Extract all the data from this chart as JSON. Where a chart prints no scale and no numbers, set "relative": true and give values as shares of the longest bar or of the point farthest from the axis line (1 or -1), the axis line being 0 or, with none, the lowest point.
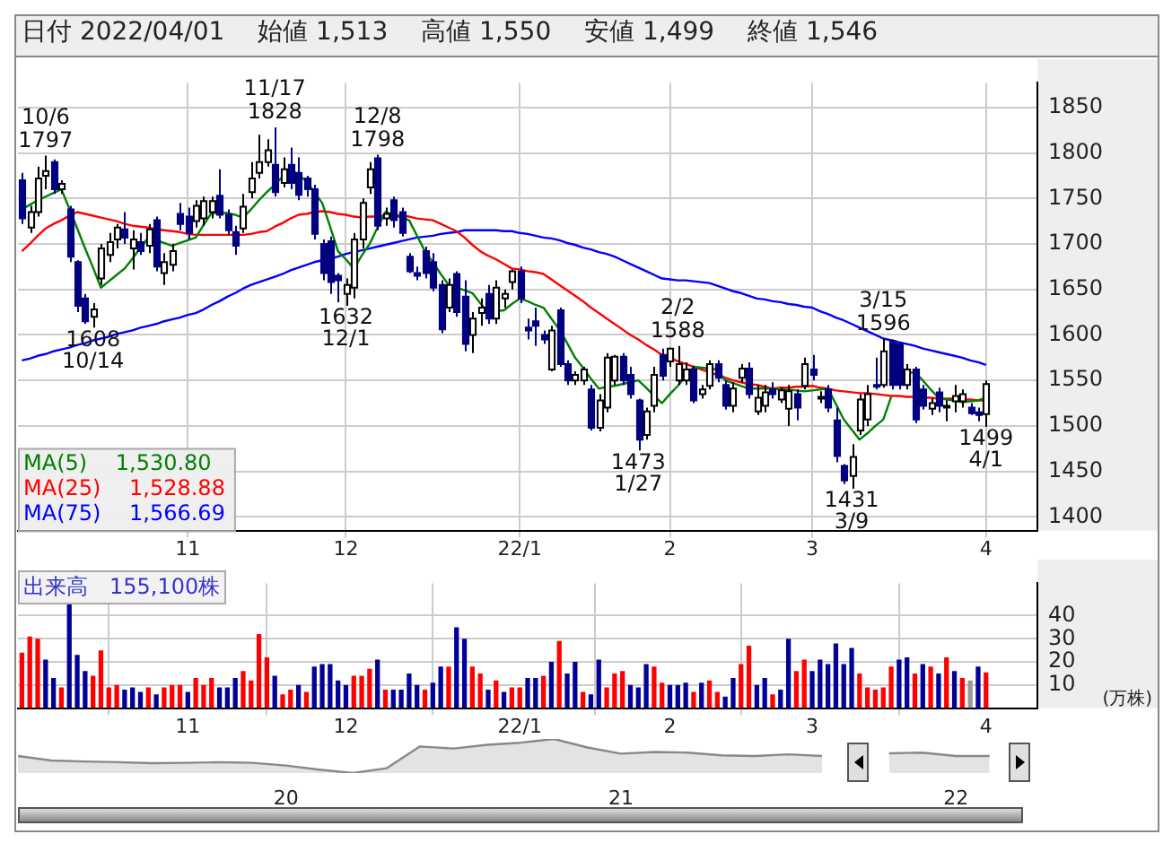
{
  "chart_data": [
    {
      "type": "candlestick",
      "title": "日付 2022/04/01　 始値 1,513　 高値 1,550　 安値 1,499　 終値 1,546",
      "categories": [
        null,
        null,
        null,
        null,
        null,
        null,
        null,
        null,
        null,
        null,
        null,
        null,
        null,
        null,
        null,
        null,
        null,
        null,
        null,
        null,
        null,
        "11",
        null,
        null,
        null,
        null,
        null,
        null,
        null,
        null,
        null,
        null,
        null,
        null,
        null,
        null,
        null,
        null,
        null,
        null,
        null,
        "12",
        null,
        null,
        null,
        null,
        null,
        null,
        null,
        null,
        null,
        null,
        null,
        null,
        null,
        null,
        null,
        null,
        null,
        null,
        null,
        null,
        null,
        "22/1",
        null,
        null,
        null,
        null,
        null,
        null,
        null,
        null,
        null,
        null,
        null,
        null,
        null,
        null,
        null,
        null,
        null,
        null,
        "2",
        null,
        null,
        null,
        null,
        null,
        null,
        null,
        null,
        null,
        null,
        null,
        null,
        null,
        null,
        null,
        null,
        null,
        "3",
        null,
        null,
        null,
        null,
        null,
        null,
        null,
        null,
        null,
        null,
        null,
        null,
        null,
        null,
        null,
        null,
        null,
        null,
        null,
        null,
        null,
        "4"
      ],
      "ohlc": [
        [
          1770,
          1778,
          1722,
          1728
        ],
        [
          1718,
          1742,
          1712,
          1735
        ],
        [
          1735,
          1785,
          1730,
          1772
        ],
        [
          1775,
          1797,
          1760,
          1780
        ],
        [
          1790,
          1793,
          1755,
          1760
        ],
        [
          1760,
          1770,
          1755,
          1766
        ],
        [
          1738,
          1742,
          1680,
          1686
        ],
        [
          1680,
          1682,
          1625,
          1632
        ],
        [
          1640,
          1645,
          1612,
          1615
        ],
        [
          1620,
          1635,
          1608,
          1628
        ],
        [
          1662,
          1700,
          1655,
          1695
        ],
        [
          1688,
          1712,
          1680,
          1702
        ],
        [
          1705,
          1722,
          1695,
          1718
        ],
        [
          1716,
          1735,
          1700,
          1707
        ],
        [
          1695,
          1715,
          1672,
          1705
        ],
        [
          1702,
          1712,
          1688,
          1692
        ],
        [
          1698,
          1722,
          1690,
          1716
        ],
        [
          1726,
          1730,
          1670,
          1675
        ],
        [
          1668,
          1690,
          1655,
          1680
        ],
        [
          1677,
          1700,
          1670,
          1692
        ],
        [
          1733,
          1745,
          1715,
          1722
        ],
        [
          1730,
          1740,
          1705,
          1712
        ],
        [
          1725,
          1748,
          1718,
          1742
        ],
        [
          1728,
          1752,
          1720,
          1747
        ],
        [
          1735,
          1752,
          1728,
          1747
        ],
        [
          1753,
          1782,
          1728,
          1732
        ],
        [
          1732,
          1738,
          1710,
          1715
        ],
        [
          1713,
          1720,
          1688,
          1698
        ],
        [
          1717,
          1755,
          1712,
          1741
        ],
        [
          1757,
          1790,
          1750,
          1772
        ],
        [
          1778,
          1820,
          1772,
          1790
        ],
        [
          1790,
          1815,
          1785,
          1803
        ],
        [
          1787,
          1828,
          1752,
          1757
        ],
        [
          1767,
          1795,
          1762,
          1782
        ],
        [
          1787,
          1806,
          1760,
          1767
        ],
        [
          1778,
          1795,
          1748,
          1754
        ],
        [
          1772,
          1775,
          1752,
          1760
        ],
        [
          1760,
          1765,
          1705,
          1711
        ],
        [
          1700,
          1705,
          1660,
          1668
        ],
        [
          1703,
          1708,
          1645,
          1658
        ],
        [
          1665,
          1668,
          1636,
          1660
        ],
        [
          1645,
          1662,
          1632,
          1655
        ],
        [
          1652,
          1712,
          1640,
          1705
        ],
        [
          1705,
          1750,
          1695,
          1745
        ],
        [
          1762,
          1790,
          1755,
          1782
        ],
        [
          1794,
          1798,
          1715,
          1720
        ],
        [
          1728,
          1740,
          1720,
          1733
        ],
        [
          1748,
          1752,
          1718,
          1726
        ],
        [
          1735,
          1740,
          1708,
          1712
        ],
        [
          1686,
          1690,
          1668,
          1670
        ],
        [
          1668,
          1675,
          1660,
          1665
        ],
        [
          1692,
          1697,
          1662,
          1668
        ],
        [
          1680,
          1690,
          1648,
          1652
        ],
        [
          1655,
          1660,
          1602,
          1606
        ],
        [
          1630,
          1662,
          1625,
          1655
        ],
        [
          1667,
          1670,
          1620,
          1625
        ],
        [
          1642,
          1660,
          1582,
          1590
        ],
        [
          1600,
          1625,
          1580,
          1618
        ],
        [
          1624,
          1640,
          1610,
          1630
        ],
        [
          1645,
          1655,
          1612,
          1618
        ],
        [
          1618,
          1660,
          1612,
          1652
        ],
        [
          1640,
          1650,
          1630,
          1645
        ],
        [
          1658,
          1672,
          1650,
          1670
        ],
        [
          1670,
          1675,
          1635,
          1640
        ],
        [
          1608,
          1618,
          1595,
          1605
        ],
        [
          1615,
          1630,
          1588,
          1610
        ],
        [
          1600,
          1605,
          1590,
          1595
        ],
        [
          1562,
          1610,
          1560,
          1605
        ],
        [
          1627,
          1630,
          1565,
          1568
        ],
        [
          1568,
          1572,
          1545,
          1550
        ],
        [
          1550,
          1560,
          1545,
          1556
        ],
        [
          1550,
          1565,
          1545,
          1562
        ],
        [
          1540,
          1545,
          1495,
          1498
        ],
        [
          1498,
          1535,
          1494,
          1528
        ],
        [
          1520,
          1580,
          1515,
          1575
        ],
        [
          1550,
          1578,
          1545,
          1576
        ],
        [
          1576,
          1580,
          1545,
          1550
        ],
        [
          1556,
          1565,
          1530,
          1535
        ],
        [
          1528,
          1530,
          1473,
          1485
        ],
        [
          1490,
          1520,
          1485,
          1516
        ],
        [
          1522,
          1565,
          1515,
          1556
        ],
        [
          1578,
          1585,
          1550,
          1555
        ],
        [
          1571,
          1586,
          1565,
          1585
        ],
        [
          1550,
          1588,
          1545,
          1568
        ],
        [
          1550,
          1570,
          1545,
          1562
        ],
        [
          1562,
          1566,
          1525,
          1528
        ],
        [
          1535,
          1545,
          1530,
          1540
        ],
        [
          1544,
          1572,
          1540,
          1568
        ],
        [
          1568,
          1572,
          1548,
          1553
        ],
        [
          1545,
          1550,
          1518,
          1522
        ],
        [
          1522,
          1548,
          1515,
          1541
        ],
        [
          1553,
          1568,
          1548,
          1563
        ],
        [
          1563,
          1570,
          1530,
          1535
        ],
        [
          1516,
          1545,
          1512,
          1531
        ],
        [
          1522,
          1545,
          1515,
          1537
        ],
        [
          1540,
          1548,
          1530,
          1535
        ],
        [
          1529,
          1542,
          1525,
          1539
        ],
        [
          1519,
          1545,
          1500,
          1538
        ],
        [
          1535,
          1540,
          1506,
          1520
        ],
        [
          1544,
          1575,
          1540,
          1568
        ],
        [
          1562,
          1578,
          1550,
          1556
        ],
        [
          1530,
          1538,
          1525,
          1532
        ],
        [
          1540,
          1545,
          1515,
          1520
        ],
        [
          1506,
          1520,
          1460,
          1467
        ],
        [
          1456,
          1458,
          1436,
          1440
        ],
        [
          1445,
          1480,
          1431,
          1466
        ],
        [
          1495,
          1535,
          1490,
          1529
        ],
        [
          1507,
          1545,
          1500,
          1535
        ],
        [
          1545,
          1575,
          1540,
          1543
        ],
        [
          1545,
          1596,
          1542,
          1582
        ],
        [
          1593,
          1595,
          1540,
          1545
        ],
        [
          1590,
          1592,
          1540,
          1545
        ],
        [
          1545,
          1568,
          1540,
          1562
        ],
        [
          1562,
          1565,
          1503,
          1507
        ],
        [
          1540,
          1545,
          1518,
          1522
        ],
        [
          1519,
          1530,
          1512,
          1525
        ],
        [
          1537,
          1542,
          1515,
          1522
        ],
        [
          1520,
          1528,
          1505,
          1522
        ],
        [
          1527,
          1545,
          1515,
          1533
        ],
        [
          1527,
          1540,
          1520,
          1535
        ],
        [
          1520,
          1525,
          1512,
          1514
        ],
        [
          1515,
          1520,
          1505,
          1512
        ],
        [
          1513,
          1550,
          1499,
          1546
        ]
      ],
      "series": [
        {
          "type": "line",
          "name": "MA(5)　 1,530.80",
          "color": "#008000",
          "values": [
            1738,
            1743,
            1748,
            1752,
            1756,
            1760,
            1739,
            1717,
            1695,
            1674,
            1652,
            1659,
            1666,
            1673,
            1684,
            1696,
            1707,
            1704,
            1701,
            1698,
            1701,
            1704,
            1707,
            1721,
            1734,
            1734,
            1734,
            1732,
            1729,
            1738,
            1748,
            1757,
            1765,
            1774,
            1782,
            1776,
            1769,
            1757,
            1745,
            1719,
            1692,
            1683,
            1673,
            1687,
            1700,
            1718,
            1735,
            1732,
            1729,
            1726,
            1709,
            1692,
            1680,
            1667,
            1655,
            1652,
            1649,
            1646,
            1635,
            1624,
            1626,
            1627,
            1634,
            1640,
            1637,
            1633,
            1630,
            1618,
            1606,
            1591,
            1575,
            1564,
            1552,
            1541,
            1543,
            1544,
            1546,
            1548,
            1550,
            1542,
            1533,
            1525,
            1535,
            1544,
            1555,
            1565,
            1564,
            1563,
            1562,
            1550,
            1547,
            1544,
            1541,
            1541,
            1541,
            1541,
            1540,
            1540,
            1539,
            1538,
            1539,
            1540,
            1541,
            1524,
            1507,
            1496,
            1485,
            1492,
            1500,
            1507,
            1532,
            null,
            1558,
            1559,
            1550,
            1540,
            1531,
            1529,
            1528,
            1526,
            1527,
            1528,
            1531
          ]
        },
        {
          "type": "line",
          "name": "MA(25)　 1,528.88",
          "color": "#ff0000",
          "values": [
            1692,
            1700,
            1709,
            1717,
            1722,
            1726,
            1731,
            1735,
            1733,
            1731,
            1729,
            1727,
            1725,
            1722,
            1720,
            1719,
            1718,
            1716,
            1715,
            1714,
            1713,
            1711,
            1710,
            1710,
            1710,
            1710,
            1710,
            1710,
            1710,
            1711,
            1713,
            1714,
            1719,
            1723,
            1728,
            1732,
            1733,
            1735,
            1736,
            1735,
            1733,
            1732,
            1730,
            1729,
            1730,
            1730,
            1731,
            1732,
            1731,
            1730,
            1728,
            1727,
            1726,
            1722,
            1718,
            1714,
            1707,
            1699,
            1692,
            1687,
            1683,
            1678,
            1673,
            1672,
            1670,
            1669,
            1667,
            1661,
            1655,
            1649,
            1643,
            1637,
            1630,
            1624,
            1618,
            1612,
            1606,
            1600,
            1595,
            1589,
            1584,
            1578,
            1575,
            1571,
            1568,
            1565,
            1562,
            1559,
            1556,
            1553,
            1550,
            1548,
            1546,
            1545,
            1543,
            1541,
            1542,
            1542,
            1543,
            1543,
            1544,
            1542,
            1541,
            1539,
            1538,
            1537,
            1536,
            1536,
            1535,
            1534,
            1533,
            1533,
            1532,
            1532,
            1531,
            1531,
            1530,
            1530,
            1530,
            1529,
            1529,
            1528,
            1528
          ]
        },
        {
          "type": "line",
          "name": "MA(75)　 1,566.69",
          "color": "#0000ff",
          "values": [
            1572,
            1574,
            1577,
            1579,
            1582,
            1584,
            1586,
            1589,
            1591,
            1594,
            1596,
            1598,
            1601,
            1603,
            1605,
            1608,
            1610,
            1612,
            1615,
            1617,
            1619,
            1622,
            1624,
            1628,
            1633,
            1637,
            1642,
            1646,
            1651,
            1655,
            1658,
            1661,
            1664,
            1667,
            1671,
            1674,
            1677,
            1680,
            1682,
            1684,
            1686,
            1689,
            1691,
            1693,
            1695,
            1697,
            1699,
            1701,
            1703,
            1705,
            1707,
            1708,
            1709,
            1711,
            1712,
            1713,
            1715,
            1715,
            1715,
            1715,
            1715,
            1714,
            1714,
            1712,
            1711,
            1709,
            1707,
            1706,
            1704,
            1701,
            1699,
            1696,
            1694,
            1691,
            1689,
            1686,
            1682,
            1678,
            1674,
            1670,
            1666,
            1662,
            1661,
            1660,
            1660,
            1659,
            1658,
            1657,
            1654,
            1651,
            1648,
            1646,
            1643,
            1640,
            1639,
            1637,
            1636,
            1634,
            1633,
            1631,
            1630,
            1626,
            1623,
            1619,
            1616,
            1612,
            1608,
            1604,
            1600,
            1596,
            1594,
            1592,
            1590,
            1588,
            1585,
            1583,
            1581,
            1579,
            1577,
            1575,
            1572,
            1570,
            1567
          ]
        }
      ],
      "ylim": [
        1385,
        1877
      ],
      "yticks": [
        1400,
        1450,
        1500,
        1550,
        1600,
        1650,
        1700,
        1750,
        1800,
        1850
      ],
      "grid": true,
      "legend": "bottom left",
      "annotations": [
        {
          "text": "10/6\n1797",
          "y": 1797
        },
        {
          "text": "11/17\n1828",
          "y": 1828
        },
        {
          "text": "12/8\n1798",
          "y": 1798
        },
        {
          "text": "2/2\n1588",
          "y": 1588
        },
        {
          "text": "3/15\n1596",
          "y": 1596
        },
        {
          "text": "1608\n10/14",
          "y": 1608
        },
        {
          "text": "1632\n12/1",
          "y": 1632
        },
        {
          "text": "1473\n1/27",
          "y": 1473
        },
        {
          "text": "1431\n3/9",
          "y": 1431
        },
        {
          "text": "1499\n4/1",
          "y": 1499
        }
      ]
    },
    {
      "type": "bar",
      "title": "出来高　155,100株",
      "ylabel": "(万株)",
      "categories": [
        null,
        null,
        null,
        null,
        null,
        null,
        null,
        null,
        null,
        null,
        null,
        null,
        null,
        null,
        null,
        null,
        null,
        null,
        null,
        null,
        null,
        "11",
        null,
        null,
        null,
        null,
        null,
        null,
        null,
        null,
        null,
        null,
        null,
        null,
        null,
        null,
        null,
        null,
        null,
        null,
        null,
        "12",
        null,
        null,
        null,
        null,
        null,
        null,
        null,
        null,
        null,
        null,
        null,
        null,
        null,
        null,
        null,
        null,
        null,
        null,
        null,
        null,
        null,
        "22/1",
        null,
        null,
        null,
        null,
        null,
        null,
        null,
        null,
        null,
        null,
        null,
        null,
        null,
        null,
        null,
        null,
        null,
        null,
        "2",
        null,
        null,
        null,
        null,
        null,
        null,
        null,
        null,
        null,
        null,
        null,
        null,
        null,
        null,
        null,
        null,
        null,
        "3",
        null,
        null,
        null,
        null,
        null,
        null,
        null,
        null,
        null,
        null,
        null,
        null,
        null,
        null,
        null,
        null,
        null,
        null,
        null,
        null,
        null,
        "4"
      ],
      "values": [
        24,
        31,
        30,
        21,
        13,
        9,
        45,
        23,
        16,
        14,
        25,
        9,
        10,
        8,
        9,
        7,
        9,
        6,
        9,
        10,
        10,
        7,
        13,
        10,
        13,
        9,
        9,
        13,
        16,
        12,
        32,
        22,
        14,
        6,
        8,
        10,
        7,
        18,
        19,
        19,
        12,
        10,
        14,
        14,
        17,
        21,
        8,
        8,
        8,
        15,
        10,
        8,
        11,
        18,
        18,
        35,
        30,
        18,
        15,
        8,
        12,
        7,
        9,
        9,
        13,
        13,
        14,
        20,
        29,
        15,
        20,
        7,
        6,
        21,
        9,
        15,
        16,
        10,
        9,
        19,
        18,
        11,
        10,
        10,
        11,
        7,
        11,
        12,
        7,
        5,
        13,
        19,
        27,
        10,
        13,
        6,
        8,
        30,
        16,
        21,
        16,
        21,
        19,
        28,
        19,
        26,
        15,
        9,
        8,
        9,
        18,
        21,
        22,
        15,
        19,
        18,
        15,
        22,
        16,
        13,
        12,
        18,
        15.5
      ],
      "colors": [
        "#ff0000",
        "#ff0000",
        "#ff0000",
        "#000099",
        "#000099",
        "#ff0000",
        "#000099",
        "#000099",
        "#000099",
        "#ff0000",
        "#ff0000",
        "#ff0000",
        "#ff0000",
        "#000099",
        "#000099",
        "#000099",
        "#ff0000",
        "#000099",
        "#ff0000",
        "#ff0000",
        "#ff0000",
        "#000099",
        "#ff0000",
        "#ff0000",
        "#ff0000",
        "#000099",
        "#000099",
        "#000099",
        "#ff0000",
        "#ff0000",
        "#ff0000",
        "#ff0000",
        "#000099",
        "#ff0000",
        "#ff0000",
        "#000099",
        "#ff0000",
        "#000099",
        "#000099",
        "#000099",
        "#000099",
        "#000099",
        "#ff0000",
        "#ff0000",
        "#ff0000",
        "#000099",
        "#ff0000",
        "#000099",
        "#000099",
        "#000099",
        "#000099",
        "#ff0000",
        "#000099",
        "#000099",
        "#ff0000",
        "#000099",
        "#000099",
        "#ff0000",
        "#ff0000",
        "#000099",
        "#ff0000",
        "#000099",
        "#ff0000",
        "#ff0000",
        "#000099",
        "#000099",
        "#ff0000",
        "#000099",
        "#ff0000",
        "#000099",
        "#000099",
        "#ff0000",
        "#000099",
        "#000099",
        "#ff0000",
        "#ff0000",
        "#ff0000",
        "#000099",
        "#000099",
        "#000099",
        "#ff0000",
        "#ff0000",
        "#000099",
        "#000099",
        "#000099",
        "#ff0000",
        "#000099",
        "#ff0000",
        "#ff0000",
        "#000099",
        "#000099",
        "#ff0000",
        "#ff0000",
        "#000099",
        "#000099",
        "#ff0000",
        "#000099",
        "#000099",
        "#ff0000",
        "#ff0000",
        "#000099",
        "#000099",
        "#000099",
        "#000099",
        "#000099",
        "#000099",
        "#ff0000",
        "#ff0000",
        "#ff0000",
        "#ff0000",
        "#ff0000",
        "#000099",
        "#000099",
        "#ff0000",
        "#000099",
        "#ff0000",
        "#000099",
        "#ff0000",
        "#000099",
        "#ff0000",
        "#999999",
        "#000099",
        "#ff0000"
      ],
      "ylim": [
        0,
        54
      ],
      "yticks": [
        10,
        20,
        30,
        40
      ],
      "grid": true
    },
    {
      "type": "area",
      "relative": true,
      "color": "#888888",
      "categories": [
        null,
        null,
        null,
        null,
        null,
        null,
        null,
        null,
        "20",
        null,
        null,
        null,
        null,
        null,
        null,
        null,
        null,
        null,
        "21",
        null,
        null,
        null,
        null,
        null,
        null,
        null,
        null,
        null,
        "22",
        null,
        null
      ],
      "values": [
        0.5,
        0.37,
        0.34,
        0.32,
        0.29,
        0.3,
        0.32,
        0.3,
        0.22,
        0.1,
        0,
        0.14,
        0.78,
        0.72,
        0.83,
        0.89,
        1,
        0.75,
        0.57,
        0.62,
        0.6,
        0.52,
        0.5,
        0.55,
        0.5,
        null,
        0.58,
        0.6,
        0.5,
        0.5,
        null
      ]
    }
  ]
}
